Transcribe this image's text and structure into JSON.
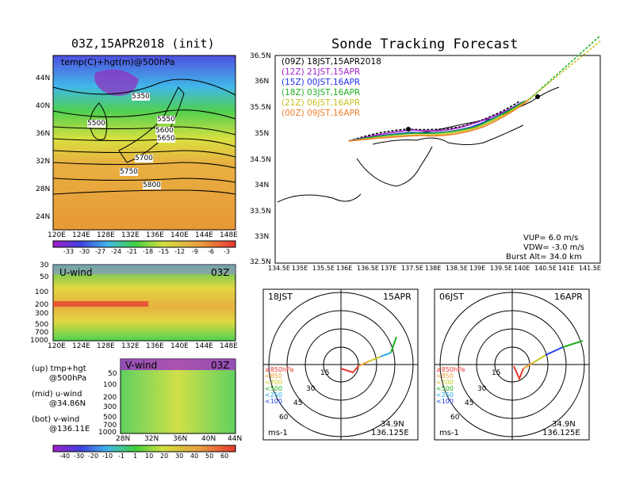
{
  "left": {
    "title": "03Z,15APR2018 (init)",
    "map_label": "temp(C)+hgt(m)@500hPa",
    "contours": [
      "5350",
      "5500",
      "5550",
      "5600",
      "5650",
      "5700",
      "5750",
      "5800"
    ],
    "lon_ticks": [
      "120E",
      "124E",
      "128E",
      "132E",
      "136E",
      "140E",
      "144E",
      "148E"
    ],
    "lat_ticks": [
      "44N",
      "40N",
      "36N",
      "32N",
      "28N",
      "24N"
    ],
    "temp_scale": [
      "-33",
      "-30",
      "-27",
      "-24",
      "-21",
      "-18",
      "-15",
      "-12",
      "-9",
      "-6",
      "-3"
    ],
    "u_title": "U-wind",
    "u_time": "03Z",
    "u_p_ticks": [
      "30",
      "50",
      "100",
      "200",
      "300",
      "500",
      "700",
      "1000"
    ],
    "u_lon_ticks": [
      "120E",
      "124E",
      "128E",
      "132E",
      "136E",
      "140E",
      "144E",
      "148E"
    ],
    "v_title": "V-wind",
    "v_time": "03Z",
    "v_p_ticks": [
      "50",
      "100",
      "200",
      "300",
      "500",
      "700",
      "1000"
    ],
    "v_lat_ticks": [
      "28N",
      "32N",
      "36N",
      "40N",
      "44N"
    ],
    "wind_scale": [
      "-40",
      "-30",
      "-20",
      "-10",
      "-1",
      "1",
      "10",
      "20",
      "30",
      "40",
      "50",
      "60"
    ],
    "legend": [
      {
        "a": "(up) tmp+hgt",
        "b": "@500hPa"
      },
      {
        "a": "(mid) u-wind",
        "b": "@34.86N"
      },
      {
        "a": "(bot) v-wind",
        "b": "@136.11E"
      }
    ],
    "colors": {
      "warm": "#e9a038",
      "mid": "#e8d838",
      "cool": "#46d046",
      "cold": "#40b8e8",
      "jet": "#e83830"
    }
  },
  "track": {
    "title": "Sonde Tracking Forecast",
    "runs": [
      {
        "label": "(09Z)  18JST,15APR2018",
        "color": "#000000"
      },
      {
        "label": "(12Z)  21JST,15APR",
        "color": "#a020c8"
      },
      {
        "label": "(15Z)  00JST,16APR",
        "color": "#2030e8"
      },
      {
        "label": "(18Z)  03JST,16APR",
        "color": "#20b020"
      },
      {
        "label": "(21Z)  06JST,16APR",
        "color": "#c8c020"
      },
      {
        "label": "(00Z)  09JST,16APR",
        "color": "#f08030"
      }
    ],
    "lon_ticks": [
      "134.5E",
      "135E",
      "135.5E",
      "136E",
      "136.5E",
      "137E",
      "137.5E",
      "138E",
      "138.5E",
      "139E",
      "139.5E",
      "140E",
      "140.5E",
      "141E",
      "141.5E"
    ],
    "lat_ticks": [
      "36.5N",
      "36N",
      "35.5N",
      "35N",
      "34.5N",
      "34N",
      "33.5N",
      "33N",
      "32.5N"
    ],
    "params": [
      "VUP=  6.0 m/s",
      "VDW= -3.0 m/s",
      "Burst Alt= 34.0 km"
    ]
  },
  "hodographs": [
    {
      "time": "18JST",
      "date": "15APR",
      "lat": "34.9N",
      "lon": "136.125E",
      "unit": "ms-1"
    },
    {
      "time": "06JST",
      "date": "16APR",
      "lat": "34.9N",
      "lon": "136.125E",
      "unit": "ms-1"
    }
  ],
  "hodo_rings": [
    "15",
    "30",
    "45",
    "60"
  ],
  "hodo_levels": [
    {
      "label": "≥850hPa",
      "color": "#e83830"
    },
    {
      "label": "<850",
      "color": "#f0a030"
    },
    {
      "label": "<700",
      "color": "#c8c820"
    },
    {
      "label": "<500",
      "color": "#20b020"
    },
    {
      "label": "<250",
      "color": "#20a8e8"
    },
    {
      "label": "<100",
      "color": "#2040e8"
    }
  ]
}
